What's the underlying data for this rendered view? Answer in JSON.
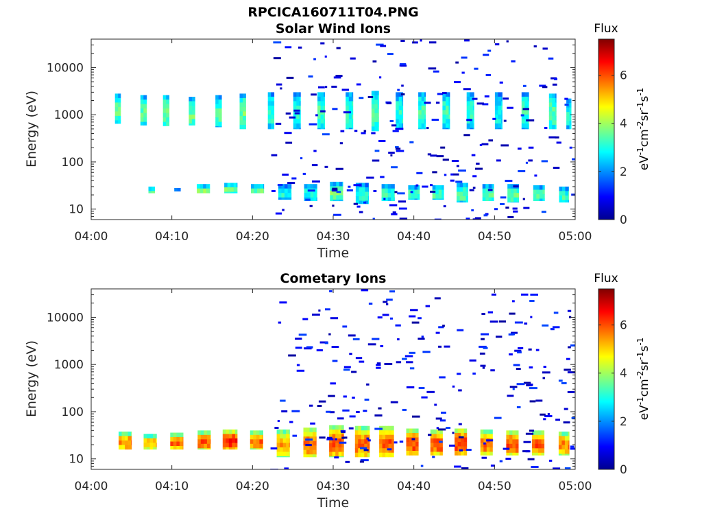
{
  "figure": {
    "filename": "RPCICA160711T04.PNG"
  },
  "chart_data": [
    {
      "type": "heatmap",
      "title": "Solar Wind Ions",
      "xlabel": "Time",
      "ylabel": "Energy (eV)",
      "x_ticks": [
        "04:00",
        "04:10",
        "04:20",
        "04:30",
        "04:40",
        "04:50",
        "05:00"
      ],
      "x_range_minutes": [
        0,
        60
      ],
      "y_scale": "log",
      "y_range": [
        6,
        40000
      ],
      "y_ticks": [
        10,
        100,
        1000,
        10000
      ],
      "y_tick_labels": [
        "10",
        "100",
        "1000",
        "10000"
      ],
      "colorbar": {
        "title": "Flux",
        "label": "eV-1cm-2sr-1s-1",
        "range": [
          0,
          7.5
        ],
        "ticks": [
          0,
          2,
          4,
          6
        ],
        "colormap": "jet"
      },
      "grid": false,
      "patches": [
        {
          "t": 3.3,
          "w": 0.7,
          "e_low": 650,
          "e_high": 2800,
          "c": 3.6
        },
        {
          "t": 6.5,
          "w": 0.8,
          "e_low": 600,
          "e_high": 2600,
          "c": 3.5
        },
        {
          "t": 9.3,
          "w": 0.8,
          "e_low": 580,
          "e_high": 2600,
          "c": 3.7
        },
        {
          "t": 12.5,
          "w": 0.8,
          "e_low": 600,
          "e_high": 2400,
          "c": 3.6
        },
        {
          "t": 15.8,
          "w": 0.8,
          "e_low": 550,
          "e_high": 2600,
          "c": 3.5
        },
        {
          "t": 18.8,
          "w": 0.8,
          "e_low": 500,
          "e_high": 2800,
          "c": 3.6
        },
        {
          "t": 22.3,
          "w": 0.8,
          "e_low": 500,
          "e_high": 3000,
          "c": 3.2
        },
        {
          "t": 25.5,
          "w": 0.9,
          "e_low": 500,
          "e_high": 3000,
          "c": 3.0
        },
        {
          "t": 28.5,
          "w": 0.9,
          "e_low": 500,
          "e_high": 3000,
          "c": 3.3
        },
        {
          "t": 32.0,
          "w": 0.9,
          "e_low": 500,
          "e_high": 3000,
          "c": 3.2
        },
        {
          "t": 35.2,
          "w": 0.9,
          "e_low": 450,
          "e_high": 3200,
          "c": 3.4
        },
        {
          "t": 38.2,
          "w": 0.9,
          "e_low": 500,
          "e_high": 3000,
          "c": 3.1
        },
        {
          "t": 41.0,
          "w": 0.9,
          "e_low": 500,
          "e_high": 3000,
          "c": 3.3
        },
        {
          "t": 44.0,
          "w": 0.9,
          "e_low": 500,
          "e_high": 3000,
          "c": 3.2
        },
        {
          "t": 47.0,
          "w": 0.9,
          "e_low": 500,
          "e_high": 3000,
          "c": 3.1
        },
        {
          "t": 50.5,
          "w": 0.9,
          "e_low": 500,
          "e_high": 3000,
          "c": 3.0
        },
        {
          "t": 53.8,
          "w": 0.9,
          "e_low": 500,
          "e_high": 3000,
          "c": 3.2
        },
        {
          "t": 57.2,
          "w": 0.9,
          "e_low": 500,
          "e_high": 2800,
          "c": 3.4
        },
        {
          "t": 59.2,
          "w": 0.6,
          "e_low": 500,
          "e_high": 2200,
          "c": 3.0
        },
        {
          "t": 7.5,
          "w": 0.8,
          "e_low": 22,
          "e_high": 30,
          "c": 3.5
        },
        {
          "t": 10.7,
          "w": 0.8,
          "e_low": 24,
          "e_high": 28,
          "c": 3.2
        },
        {
          "t": 13.9,
          "w": 1.6,
          "e_low": 22,
          "e_high": 34,
          "c": 3.8
        },
        {
          "t": 17.3,
          "w": 1.6,
          "e_low": 22,
          "e_high": 36,
          "c": 3.9
        },
        {
          "t": 20.6,
          "w": 1.6,
          "e_low": 22,
          "e_high": 34,
          "c": 3.6
        },
        {
          "t": 24.0,
          "w": 1.6,
          "e_low": 16,
          "e_high": 34,
          "c": 3.0
        },
        {
          "t": 27.2,
          "w": 1.6,
          "e_low": 15,
          "e_high": 34,
          "c": 3.0
        },
        {
          "t": 30.4,
          "w": 1.6,
          "e_low": 15,
          "e_high": 38,
          "c": 3.6
        },
        {
          "t": 33.6,
          "w": 1.6,
          "e_low": 13,
          "e_high": 36,
          "c": 3.0
        },
        {
          "t": 36.8,
          "w": 1.6,
          "e_low": 15,
          "e_high": 34,
          "c": 3.2
        },
        {
          "t": 40.0,
          "w": 1.4,
          "e_low": 16,
          "e_high": 32,
          "c": 3.3
        },
        {
          "t": 43.0,
          "w": 1.4,
          "e_low": 16,
          "e_high": 32,
          "c": 3.4
        },
        {
          "t": 46.0,
          "w": 1.4,
          "e_low": 14,
          "e_high": 36,
          "c": 3.5
        },
        {
          "t": 49.2,
          "w": 1.4,
          "e_low": 15,
          "e_high": 34,
          "c": 3.4
        },
        {
          "t": 52.3,
          "w": 1.4,
          "e_low": 14,
          "e_high": 34,
          "c": 3.6
        },
        {
          "t": 55.5,
          "w": 1.4,
          "e_low": 15,
          "e_high": 32,
          "c": 3.3
        },
        {
          "t": 58.6,
          "w": 1.2,
          "e_low": 14,
          "e_high": 30,
          "c": 3.2
        }
      ]
    },
    {
      "type": "heatmap",
      "title": "Cometary Ions",
      "xlabel": "Time",
      "ylabel": "Energy (eV)",
      "x_ticks": [
        "04:00",
        "04:10",
        "04:20",
        "04:30",
        "04:40",
        "04:50",
        "05:00"
      ],
      "x_range_minutes": [
        0,
        60
      ],
      "y_scale": "log",
      "y_range": [
        6,
        40000
      ],
      "y_ticks": [
        10,
        100,
        1000,
        10000
      ],
      "y_tick_labels": [
        "10",
        "100",
        "1000",
        "10000"
      ],
      "colorbar": {
        "title": "Flux",
        "label": "eV-1cm-2sr-1s-1",
        "range": [
          0,
          7.5
        ],
        "ticks": [
          0,
          2,
          4,
          6
        ],
        "colormap": "jet"
      },
      "grid": false,
      "patches": [
        {
          "t": 4.2,
          "w": 1.6,
          "e_low": 16,
          "e_high": 38,
          "c": 5.6
        },
        {
          "t": 7.3,
          "w": 1.6,
          "e_low": 16,
          "e_high": 34,
          "c": 5.3
        },
        {
          "t": 10.6,
          "w": 1.6,
          "e_low": 16,
          "e_high": 36,
          "c": 5.8
        },
        {
          "t": 14.0,
          "w": 1.6,
          "e_low": 16,
          "e_high": 40,
          "c": 5.9
        },
        {
          "t": 17.2,
          "w": 1.8,
          "e_low": 16,
          "e_high": 42,
          "c": 6.4
        },
        {
          "t": 20.5,
          "w": 1.6,
          "e_low": 16,
          "e_high": 40,
          "c": 5.8
        },
        {
          "t": 23.8,
          "w": 1.6,
          "e_low": 11,
          "e_high": 42,
          "c": 5.4
        },
        {
          "t": 27.1,
          "w": 1.6,
          "e_low": 11,
          "e_high": 46,
          "c": 5.9
        },
        {
          "t": 30.4,
          "w": 1.8,
          "e_low": 11,
          "e_high": 52,
          "c": 6.0
        },
        {
          "t": 33.6,
          "w": 1.8,
          "e_low": 11,
          "e_high": 50,
          "c": 5.8
        },
        {
          "t": 36.6,
          "w": 1.8,
          "e_low": 11,
          "e_high": 50,
          "c": 5.9
        },
        {
          "t": 39.8,
          "w": 1.5,
          "e_low": 12,
          "e_high": 44,
          "c": 6.1
        },
        {
          "t": 42.8,
          "w": 1.5,
          "e_low": 12,
          "e_high": 42,
          "c": 6.0
        },
        {
          "t": 45.8,
          "w": 1.5,
          "e_low": 12,
          "e_high": 44,
          "c": 6.2
        },
        {
          "t": 49.0,
          "w": 1.5,
          "e_low": 12,
          "e_high": 42,
          "c": 5.8
        },
        {
          "t": 52.2,
          "w": 1.5,
          "e_low": 12,
          "e_high": 40,
          "c": 6.0
        },
        {
          "t": 55.4,
          "w": 1.5,
          "e_low": 12,
          "e_high": 40,
          "c": 5.9
        },
        {
          "t": 58.6,
          "w": 1.3,
          "e_low": 12,
          "e_high": 38,
          "c": 5.6
        }
      ]
    }
  ]
}
